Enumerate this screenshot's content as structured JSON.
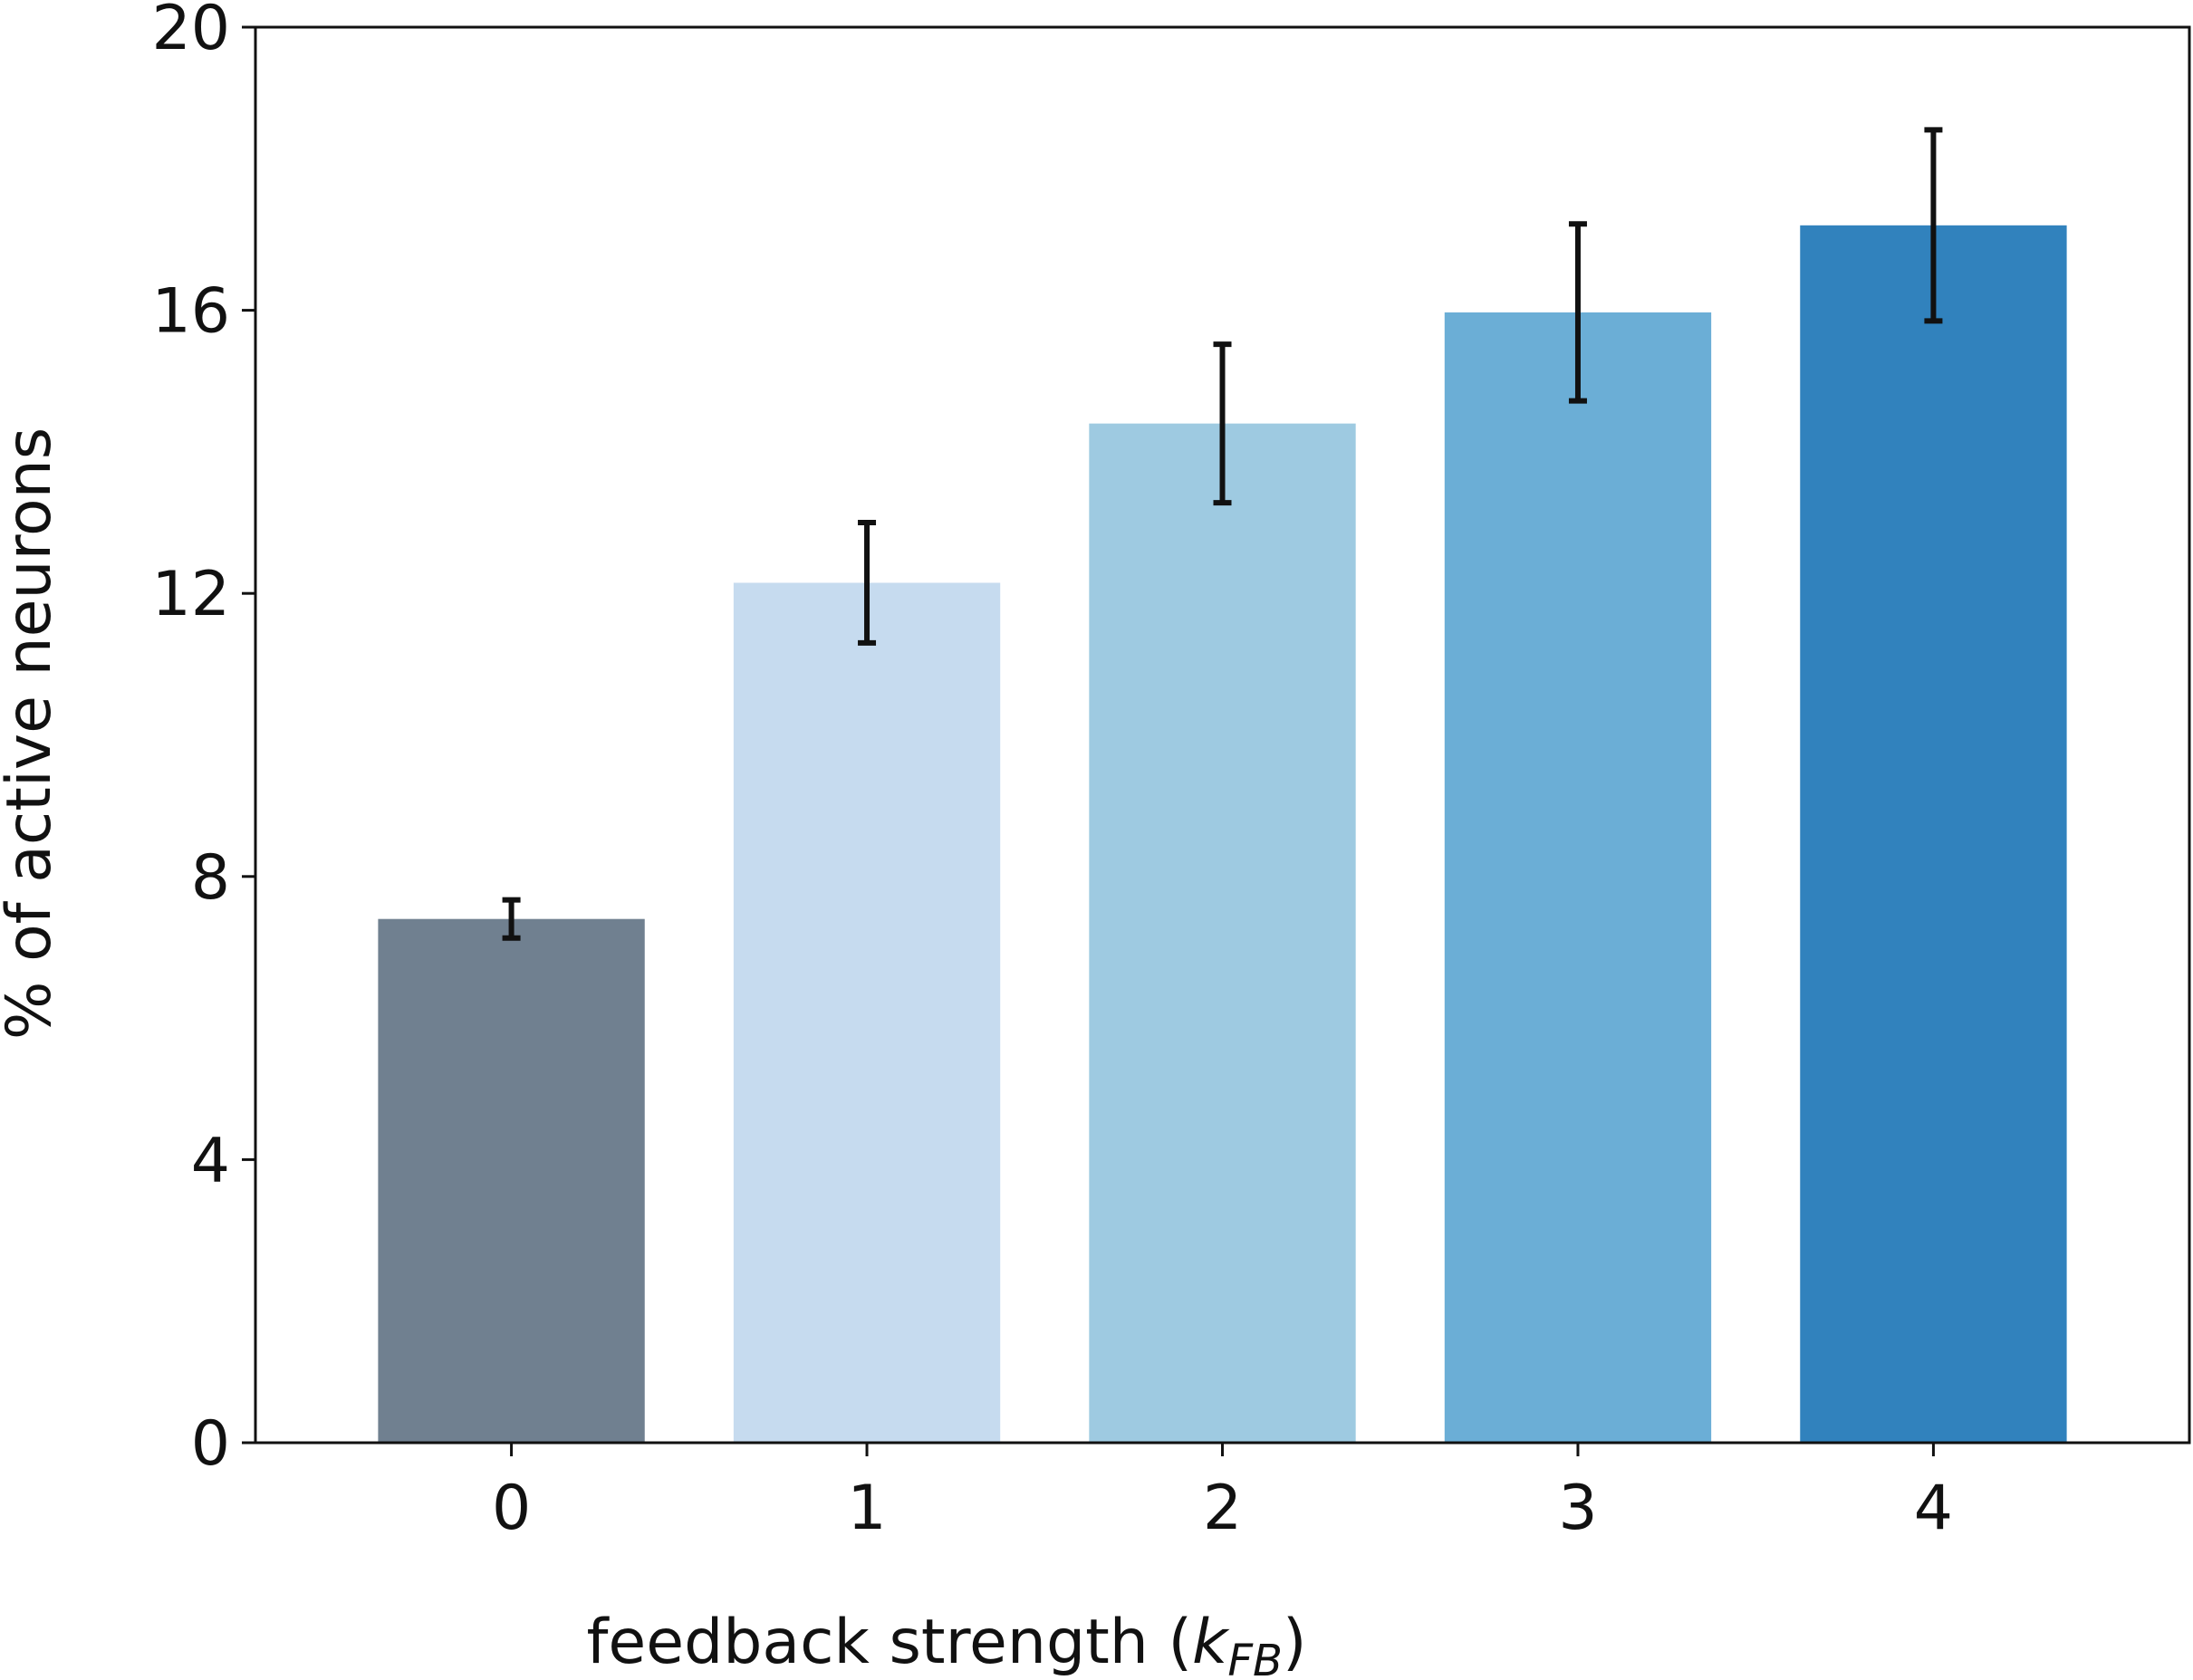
{
  "chart_data": {
    "type": "bar",
    "categories": [
      "0",
      "1",
      "2",
      "3",
      "4"
    ],
    "values": [
      7.4,
      12.15,
      14.4,
      15.97,
      17.2
    ],
    "errors": [
      0.27,
      0.85,
      1.12,
      1.25,
      1.35
    ],
    "colors": [
      "#708090",
      "#c6dbef",
      "#9ecae1",
      "#6baed6",
      "#3182bd"
    ],
    "error_color": "#111111",
    "xlabel": {
      "prefix": "feedback strength (",
      "symbol": "k",
      "subscript": "FB",
      "suffix": ")"
    },
    "ylabel": "% of active neurons",
    "yticks": [
      0,
      4,
      8,
      12,
      16,
      20
    ],
    "ylim": [
      0,
      20
    ],
    "grid": false,
    "legend": "none"
  }
}
